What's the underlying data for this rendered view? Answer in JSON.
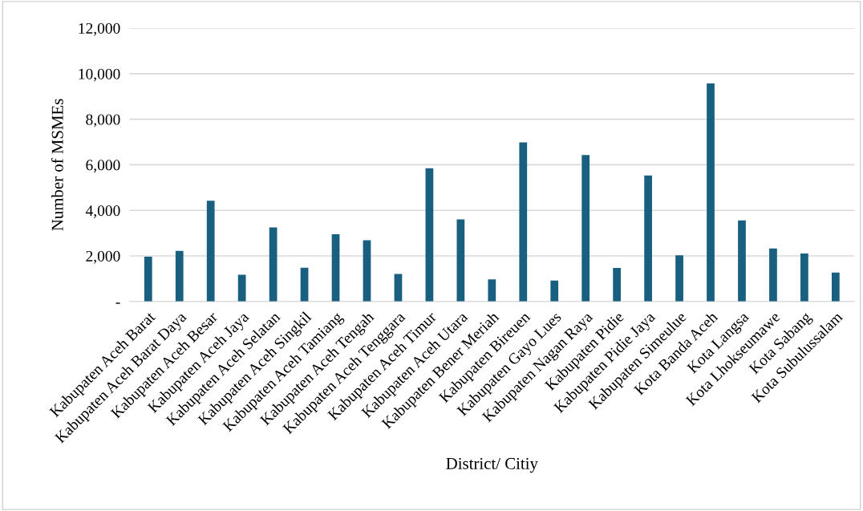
{
  "chart_data": {
    "type": "bar",
    "xlabel": "District/ Citiy",
    "ylabel": "Number of MSMEs",
    "categories": [
      "Kabupaten Aceh Barat",
      "Kabupaten Aceh Barat Daya",
      "Kabupaten Aceh Besar",
      "Kabupaten Aceh Jaya",
      "Kabupaten Aceh Selatan",
      "Kabupaten Aceh Singkil",
      "Kabupaten Aceh Tamiang",
      "Kabupaten Aceh Tengah",
      "Kabupaten Aceh Tenggara",
      "Kabupaten Aceh Timur",
      "Kabupaten Aceh Utara",
      "Kabupaten Bener Meriah",
      "Kabupaten Bireuen",
      "Kabupaten Gayo Lues",
      "Kabupaten Nagan Raya",
      "Kabupaten Pidie",
      "Kabupaten Pidie Jaya",
      "Kabupaten Simeulue",
      "Kota Banda Aceh",
      "Kota Langsa",
      "Kota Lhokseumawe",
      "Kota Sabang",
      "Kota Subulussalam"
    ],
    "values": [
      1970,
      2220,
      4420,
      1170,
      3250,
      1480,
      2950,
      2690,
      1210,
      5850,
      3600,
      970,
      6980,
      920,
      6430,
      1470,
      5530,
      2030,
      9570,
      3560,
      2330,
      2110,
      1270
    ],
    "color": "#185f80",
    "ylim": [
      0,
      12000
    ],
    "yticks": [
      {
        "value": 0,
        "label": "-"
      },
      {
        "value": 2000,
        "label": "2,000"
      },
      {
        "value": 4000,
        "label": "4,000"
      },
      {
        "value": 6000,
        "label": "6,000"
      },
      {
        "value": 8000,
        "label": "8,000"
      },
      {
        "value": 10000,
        "label": "10,000"
      },
      {
        "value": 12000,
        "label": "12,000"
      }
    ],
    "grid": "y",
    "legend": false
  }
}
